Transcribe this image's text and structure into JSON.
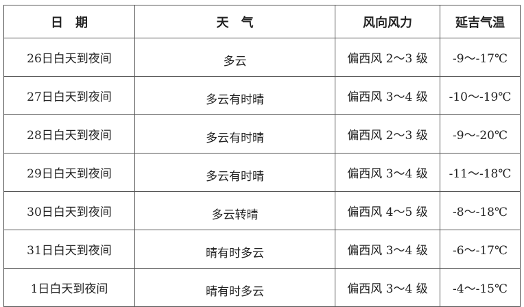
{
  "headers": [
    "日　期",
    "天　气",
    "风向风力",
    "延吉气温"
  ],
  "rows": [
    [
      "26日白天到夜间",
      "多云",
      "偏西风 2～3 级",
      "-9～-17℃"
    ],
    [
      "27日白天到夜间",
      "多云有时晴",
      "偏西风 3～4 级",
      "-10～-19℃"
    ],
    [
      "28日白天到夜间",
      "多云有时晴",
      "偏西风 2～3 级",
      "-9～-20℃"
    ],
    [
      "29日白天到夜间",
      "多云有时晴",
      "偏西风 3～4 级",
      "-11～-18℃"
    ],
    [
      "30日白天到夜间",
      "多云转晴",
      "偏西风 4～5 级",
      "-8～-18℃"
    ],
    [
      "31日白天到夜间",
      "晴有时多云",
      "偏西风 3～4 级",
      "-6～-17℃"
    ],
    [
      "1日白天到夜间",
      "晴有时多云",
      "偏西风 3～4 级",
      "-4～-15℃"
    ]
  ]
}
